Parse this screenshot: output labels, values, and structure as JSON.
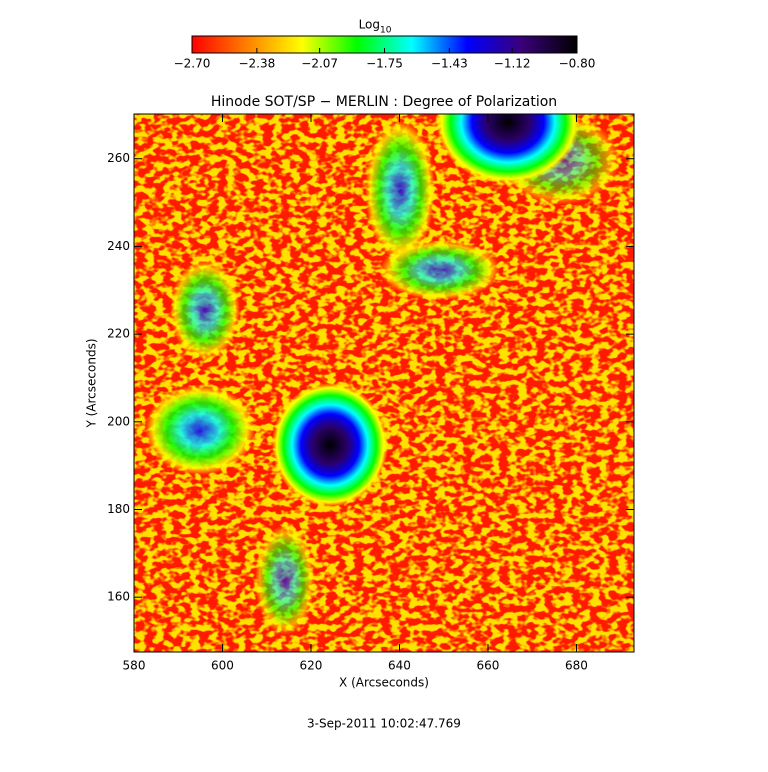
{
  "chart_data": {
    "type": "heatmap",
    "title": "Hinode SOT/SP − MERLIN : Degree of Polarization",
    "x_label": "X (Arcseconds)",
    "y_label": "Y (Arcseconds)",
    "footer": "3-Sep-2011 10:02:47.769",
    "xlim": [
      580,
      693
    ],
    "ylim": [
      147.5,
      270.2
    ],
    "xticks": [
      580,
      600,
      620,
      640,
      660,
      680
    ],
    "yticks": [
      160,
      180,
      200,
      220,
      240,
      260
    ],
    "colorbar": {
      "label": "Log",
      "label_subscript": "10",
      "lim": [
        -2.7,
        -0.8
      ],
      "ticks": [
        {
          "value": -2.7,
          "label": "−2.70"
        },
        {
          "value": -2.38,
          "label": "−2.38"
        },
        {
          "value": -2.07,
          "label": "−2.07"
        },
        {
          "value": -1.75,
          "label": "−1.75"
        },
        {
          "value": -1.43,
          "label": "−1.43"
        },
        {
          "value": -1.12,
          "label": "−1.12"
        },
        {
          "value": -0.8,
          "label": "−0.80"
        }
      ],
      "colormap": [
        "#ff0000",
        "#ff8000",
        "#ffff00",
        "#00ff00",
        "#00ffff",
        "#0000ff",
        "#3a0078",
        "#000000"
      ]
    }
  }
}
